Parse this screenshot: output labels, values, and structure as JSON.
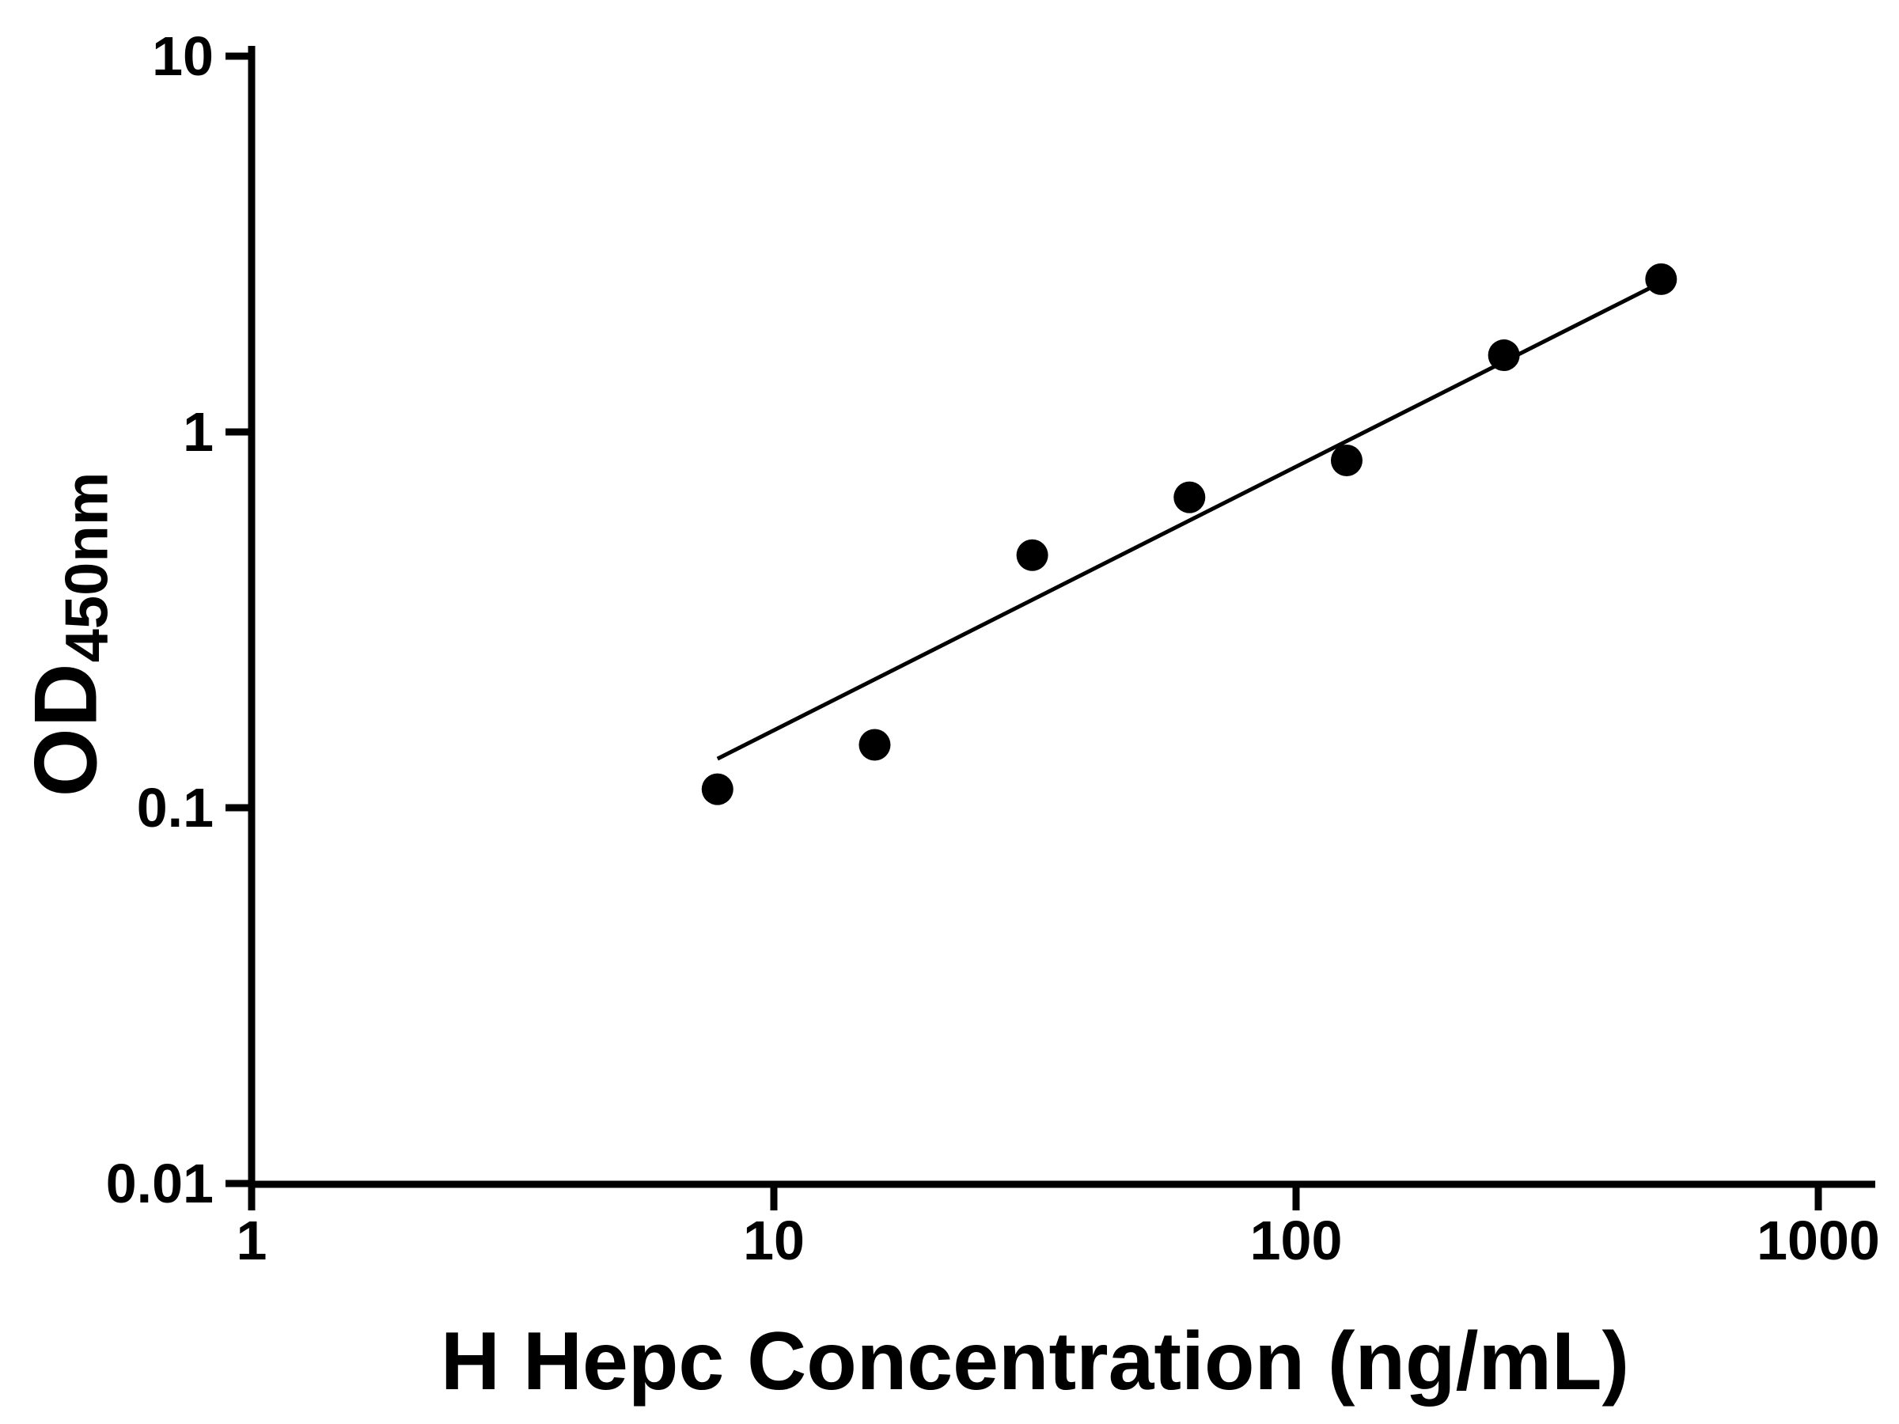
{
  "chart_data": {
    "type": "scatter",
    "title": "",
    "xlabel": "H Hepc Concentration (ng/mL)",
    "ylabel_main": "OD",
    "ylabel_sub": "450nm",
    "x_scale": "log",
    "y_scale": "log",
    "xlim": [
      1,
      1000
    ],
    "ylim": [
      0.01,
      10
    ],
    "grid": false,
    "legend": "none",
    "x": [
      7.8,
      15.6,
      31.25,
      62.5,
      125,
      250,
      500
    ],
    "y": [
      0.112,
      0.147,
      0.47,
      0.67,
      0.84,
      1.6,
      2.55
    ],
    "trend_line": {
      "x1": 7.8,
      "y1": 0.135,
      "x2": 500,
      "y2": 2.5
    },
    "x_ticks": [
      1,
      10,
      100,
      1000
    ],
    "x_tick_labels": [
      "1",
      "10",
      "100",
      "1000"
    ],
    "y_ticks": [
      0.01,
      0.1,
      1,
      10
    ],
    "y_tick_labels": [
      "0.01",
      "0.1",
      "1",
      "10"
    ],
    "marker_color": "#000000",
    "line_color": "#000000",
    "axis_color": "#000000",
    "background": "#ffffff"
  }
}
